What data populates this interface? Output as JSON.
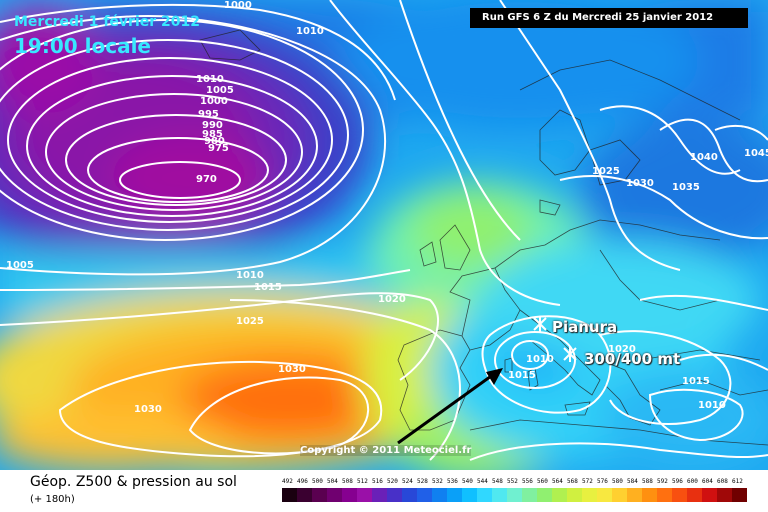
{
  "header": {
    "date": "Mercredi 1 février 2012",
    "time": "19:00 locale",
    "run": "Run GFS 6 Z du Mercredi 25 janvier 2012"
  },
  "annotations": {
    "place": "Pianura",
    "snow": "300/400 mt",
    "copyright": "Copyright © 2011 Meteociel.fr"
  },
  "legend": {
    "title": "Géop. Z500 & pression au sol",
    "subtitle": "(+ 180h)",
    "ticks": [
      "492",
      "496",
      "500",
      "504",
      "508",
      "512",
      "516",
      "520",
      "524",
      "528",
      "532",
      "536",
      "540",
      "544",
      "548",
      "552",
      "556",
      "560",
      "564",
      "568",
      "572",
      "576",
      "580",
      "584",
      "588",
      "592",
      "596",
      "600",
      "604",
      "608",
      "612"
    ],
    "colors": [
      "#1a0010",
      "#3a0030",
      "#5a0050",
      "#700070",
      "#860090",
      "#9a10a8",
      "#6a20b8",
      "#4830c8",
      "#2848d8",
      "#2060e8",
      "#1080f0",
      "#0aa0f8",
      "#10c0ff",
      "#30d8ff",
      "#50e8f0",
      "#70f0d0",
      "#80f0a0",
      "#90f070",
      "#b0f050",
      "#d0f040",
      "#e8f040",
      "#f8e840",
      "#ffd030",
      "#ffb020",
      "#ff9010",
      "#ff7010",
      "#f85010",
      "#e83010",
      "#d01010",
      "#a00808",
      "#700000"
    ]
  },
  "isobars": [
    "1005",
    "1010",
    "1010",
    "1005",
    "1000",
    "995",
    "990",
    "985",
    "980",
    "975",
    "970",
    "1010",
    "1015",
    "1020",
    "1025",
    "1030",
    "1030",
    "1025",
    "1030",
    "1035",
    "1040",
    "1045",
    "1020",
    "1015",
    "1010",
    "1015",
    "1010",
    "1000"
  ]
}
